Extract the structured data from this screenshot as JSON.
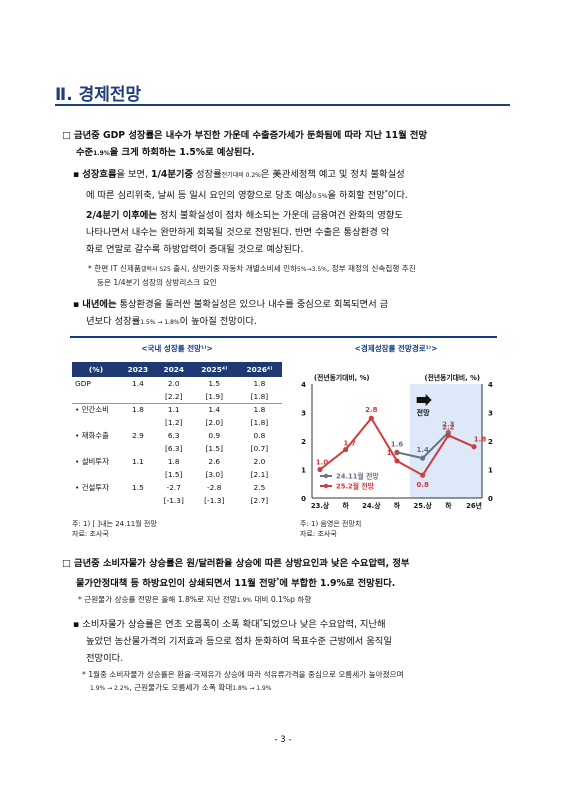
{
  "section_title": "Ⅱ. 경제전망",
  "para1": {
    "bullet": "□",
    "line1": "금년중 GDP 성장률은 내수가 부진한 가운데 수출증가세가 둔화됨에 따라 지난 11월 전망",
    "line2_a": "수준",
    "line2_sub": "1.9%",
    "line2_b": "을 크게 하회하는 1.5%로 예상된다."
  },
  "para2": {
    "marker": "▪",
    "bold_a": "성장흐름",
    "t1": "을 보면, ",
    "bold_b": "1/4분기중",
    "t2": " 성장률",
    "sub1": "전기대비 0.2%",
    "t3": "은 美관세정책 예고 및 정치 불확실성",
    "line2": "에 따른 심리위축, 날씨 등 일시 요인의 영향으로 당초 예상",
    "sub2": "0.5%",
    "t4": "을 하회할 전망",
    "sup": "*",
    "t5": "이다."
  },
  "para3": {
    "bold": "2/4분기 이후에는",
    "t1": " 정치 불확실성이 점차 해소되는 가운데 금융여건 완화의 영향도",
    "line2": "나타나면서 내수는 완만하게 회복될 것으로 전망된다. 반면 수출은 통상환경 악",
    "line3": "화로 연말로 갈수록 하방압력이 증대될 것으로 예상된다."
  },
  "foot1": {
    "a": "* 한편 IT 신제품",
    "sub1": "갤럭시 S25",
    "b": " 출시, 상반기중 자동차 개별소비세 인하",
    "sub2": "5%→3.5%",
    "c": ", 정부 재정의 신속집행 추진",
    "line2": "등은 1/4분기 성장의 상방리스크 요인"
  },
  "para4": {
    "marker": "▪",
    "bold": "내년에는",
    "t1": " 통상환경을 둘러싼 불확실성은 있으나 내수를 중심으로 회복되면서 금",
    "line2_a": "년보다 성장률",
    "sub": "1.5% → 1.8%",
    "line2_b": "이 높아질 전망이다."
  },
  "table": {
    "title": "<국내 성장률 전망¹⁾>",
    "headers": [
      "(%)",
      "2023",
      "2024",
      "2025⁴⁾",
      "2026⁴⁾"
    ],
    "rows": [
      {
        "label": "GDP",
        "c1": "1.4",
        "c2": "2.0",
        "c2b": "[2.2]",
        "c3": "1.5",
        "c3b": "[1.9]",
        "c4": "1.8",
        "c4b": "[1.8]"
      },
      {
        "label": "• 민간소비",
        "c1": "1.8",
        "c2": "1.1",
        "c2b": "[1.2]",
        "c3": "1.4",
        "c3b": "[2.0]",
        "c4": "1.8",
        "c4b": "[1.8]"
      },
      {
        "label": "• 재화수출",
        "c1": "2.9",
        "c2": "6.3",
        "c2b": "[6.3]",
        "c3": "0.9",
        "c3b": "[1.5]",
        "c4": "0.8",
        "c4b": "[0.7]"
      },
      {
        "label": "• 설비투자",
        "c1": "1.1",
        "c2": "1.8",
        "c2b": "[1.5]",
        "c3": "2.6",
        "c3b": "[3.0]",
        "c4": "2.0",
        "c4b": "[2.1]"
      },
      {
        "label": "• 건설투자",
        "c1": "1.5",
        "c2": "-2.7",
        "c2b": "[-1.3]",
        "c3": "-2.8",
        "c3b": "[-1.3]",
        "c4": "2.5",
        "c4b": "[2.7]"
      }
    ],
    "note1": "주: 1) [ ]내는 24.11월 전망",
    "source": "자료: 조사국"
  },
  "chart_data": {
    "type": "line",
    "title": "<경제성장률 전망경로¹⁾>",
    "left_axis_label": "(전년동기대비, %)",
    "right_axis_label": "(전년동기대비, %)",
    "categories": [
      "23.상",
      "하",
      "24.상",
      "하",
      "25.상",
      "하",
      "26년"
    ],
    "ylim": [
      0,
      4
    ],
    "yticks": [
      "0",
      "1",
      "2",
      "3",
      "4"
    ],
    "forecast_label": "전망",
    "series": [
      {
        "name": "24.11월 전망",
        "color": "#6a7285",
        "values": [
          null,
          null,
          null,
          1.6,
          1.4,
          2.3,
          null
        ],
        "labels": [
          "",
          "",
          "",
          "1.6",
          "1.4",
          "2.3",
          ""
        ]
      },
      {
        "name": "25.2월 전망",
        "color": "#d23b3b",
        "values": [
          1.0,
          1.7,
          2.8,
          1.3,
          0.8,
          2.2,
          1.8
        ],
        "labels": [
          "1.0",
          "1.7",
          "2.8",
          "1.3",
          "0.8",
          "2.2",
          "1.8"
        ]
      }
    ],
    "note1": "주: 1) 음영은 전망치",
    "source": "자료: 조사국"
  },
  "para5": {
    "bullet": "□",
    "line1": "금년중 소비자물가 상승률은 원/달러환율 상승에 따른 상방요인과 낮은 수요압력, 정부",
    "line2_a": "물가안정대책 등 하방요인이 상쇄되면서 11월 전망",
    "sup": "*",
    "line2_b": "에 부합한 1.9%로 전망된다."
  },
  "foot2": {
    "a": "* 근원물가 상승률 전망은 올해 1.8%로 지난 전망",
    "sub": "1.9%",
    "b": " 대비 0.1%p 하향"
  },
  "para6": {
    "marker": "▪",
    "t1": "소비자물가 상승률은 연초 오름폭이 소폭 확대",
    "sup": "*",
    "t2": "되었으나 낮은 수요압력, 지난해",
    "line2": "높았던 농산물가격의 기저효과 등으로 점차 둔화하여 목표수준 근방에서 움직일",
    "line3": "전망이다."
  },
  "foot3": {
    "a": "* 1월중 소비자물가 상승률은 환율·국제유가 상승에 따라 석유류가격을 중심으로 오름세가 높아졌으며",
    "sub1": "1.9% → 2.2%",
    "b": ", 근원물가도 오름세가 소폭 확대",
    "sub2": "1.8% → 1.9%"
  },
  "page_number": "- 3 -"
}
